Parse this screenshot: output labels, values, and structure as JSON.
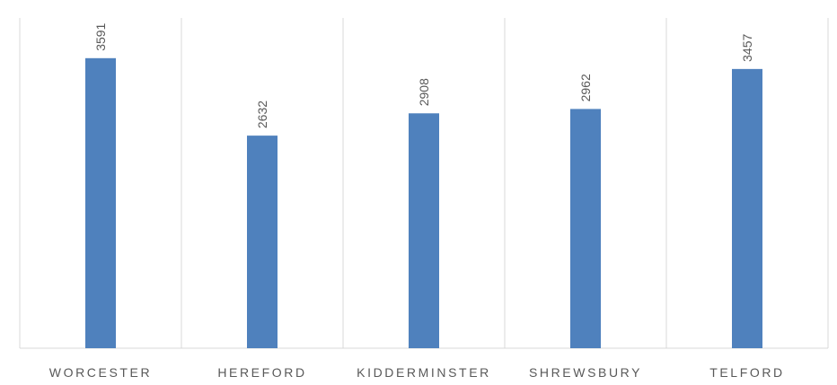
{
  "chart_data": {
    "type": "bar",
    "categories": [
      "WORCESTER",
      "HEREFORD",
      "KIDDERMINSTER",
      "SHREWSBURY",
      "TELFORD"
    ],
    "values": [
      3591,
      2632,
      2908,
      2962,
      3457
    ],
    "color": "#4f81bd",
    "ylim": [
      0,
      4200
    ],
    "data_labels": true
  }
}
